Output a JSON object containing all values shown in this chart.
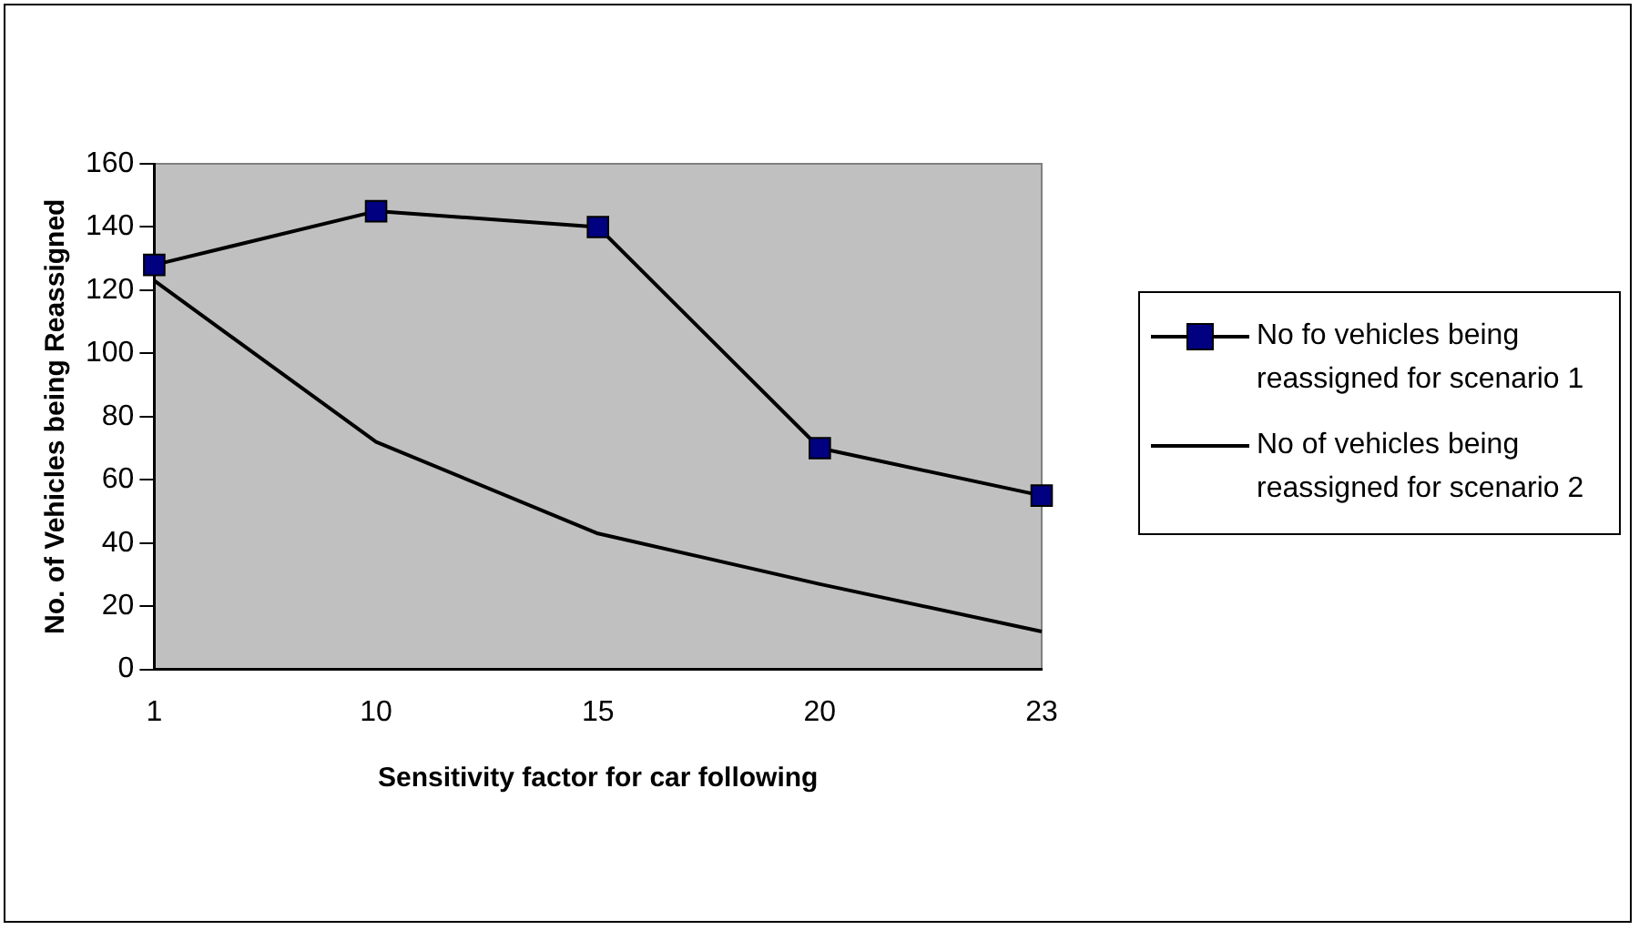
{
  "chart_data": {
    "type": "line",
    "xlabel": "Sensitivity factor for car following",
    "ylabel": "No. of Vehicles being Reassigned",
    "categories": [
      "1",
      "10",
      "15",
      "20",
      "23"
    ],
    "series": [
      {
        "name": "No fo vehicles being reassigned for scenario 1",
        "color": "#000080",
        "marker": "square",
        "values": [
          128,
          145,
          140,
          70,
          55
        ]
      },
      {
        "name": "No of vehicles being reassigned for scenario 2",
        "color": "#000000",
        "marker": "none",
        "values": [
          123,
          72,
          43,
          27,
          12
        ]
      }
    ],
    "ylim": [
      0,
      160
    ],
    "yticks": [
      0,
      20,
      40,
      60,
      80,
      100,
      120,
      140,
      160
    ],
    "grid": false,
    "legend": "right",
    "line_style": "solid"
  }
}
